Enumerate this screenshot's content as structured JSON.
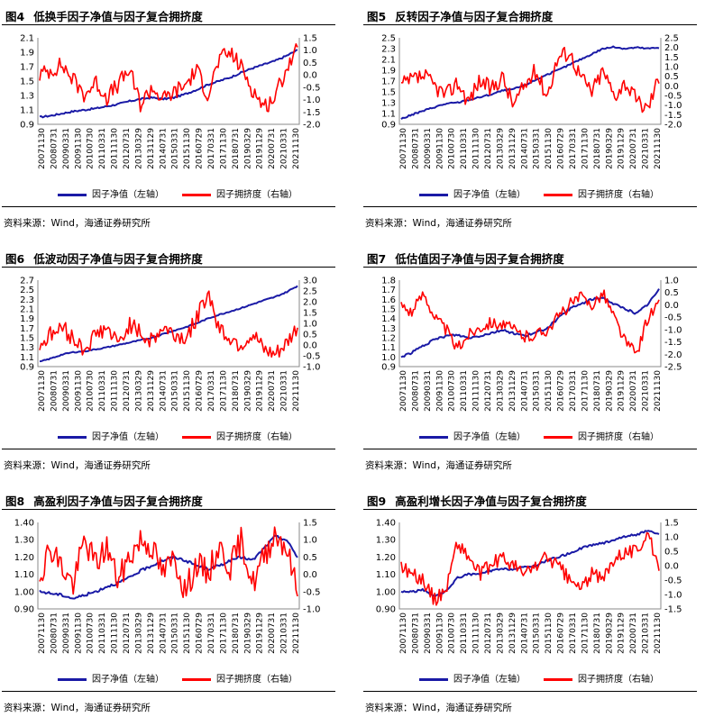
{
  "source_text": "资料来源：Wind，海通证券研究所",
  "colors": {
    "nav": "#1a1aa6",
    "crowd": "#ff0000"
  },
  "x_ticks": [
    "20071130",
    "20080731",
    "20090331",
    "20091130",
    "20100730",
    "20110331",
    "20111130",
    "20120731",
    "20130329",
    "20131129",
    "20140731",
    "20150331",
    "20151130",
    "20160729",
    "20170331",
    "20171130",
    "20180731",
    "20190329",
    "20191129",
    "20200731",
    "20210331",
    "20211130"
  ],
  "legend": {
    "nav": "因子净值（左轴）",
    "crowd": "因子拥挤度（右轴）"
  },
  "panels": [
    {
      "id": "fig4",
      "num": "图4",
      "title": "低换手因子净值与因子复合拥挤度",
      "chart_data": {
        "type": "line",
        "left_axis": {
          "ticks": [
            "0.9",
            "1.1",
            "1.3",
            "1.5",
            "1.7",
            "1.9",
            "2.1"
          ],
          "min": 0.9,
          "max": 2.1
        },
        "right_axis": {
          "ticks": [
            "-2.0",
            "-1.5",
            "-1.0",
            "-0.5",
            "0.0",
            "0.5",
            "1.0",
            "1.5"
          ],
          "min": -2.0,
          "max": 1.5
        },
        "series": [
          {
            "key": "nav",
            "axis": "left",
            "anchors": [
              1.0,
              1.02,
              1.05,
              1.08,
              1.1,
              1.12,
              1.15,
              1.18,
              1.22,
              1.25,
              1.27,
              1.25,
              1.27,
              1.32,
              1.38,
              1.45,
              1.5,
              1.55,
              1.62,
              1.68,
              1.73,
              1.78,
              1.85,
              1.93
            ],
            "noise": 0.012
          },
          {
            "key": "crowd",
            "axis": "right",
            "anchors": [
              0.0,
              0.2,
              0.4,
              -0.2,
              -0.8,
              -0.3,
              -0.9,
              -0.4,
              0.2,
              -1.2,
              -0.5,
              -1.0,
              -0.7,
              -0.4,
              0.2,
              -0.8,
              0.6,
              0.9,
              0.3,
              -0.6,
              -1.3,
              -0.9,
              0.3,
              1.0
            ],
            "noise": 0.35
          }
        ]
      }
    },
    {
      "id": "fig5",
      "num": "图5",
      "title": "反转因子净值与因子复合拥挤度",
      "chart_data": {
        "type": "line",
        "left_axis": {
          "ticks": [
            "0.9",
            "1.1",
            "1.3",
            "1.5",
            "1.7",
            "1.9",
            "2.1",
            "2.3",
            "2.5"
          ],
          "min": 0.9,
          "max": 2.5
        },
        "right_axis": {
          "ticks": [
            "-2.0",
            "-1.5",
            "-1.0",
            "-0.5",
            "0.0",
            "0.5",
            "1.0",
            "1.5",
            "2.0",
            "2.5"
          ],
          "min": -2.0,
          "max": 2.5
        },
        "series": [
          {
            "key": "nav",
            "axis": "left",
            "anchors": [
              1.0,
              1.08,
              1.15,
              1.22,
              1.28,
              1.3,
              1.35,
              1.4,
              1.45,
              1.52,
              1.55,
              1.62,
              1.72,
              1.82,
              1.9,
              2.0,
              2.1,
              2.2,
              2.3,
              2.33,
              2.3,
              2.32,
              2.3,
              2.32
            ],
            "noise": 0.015
          },
          {
            "key": "crowd",
            "axis": "right",
            "anchors": [
              0.0,
              0.3,
              0.5,
              0.0,
              -0.5,
              0.2,
              -0.8,
              0.3,
              -0.2,
              0.5,
              -1.0,
              0.0,
              0.8,
              -0.5,
              1.5,
              1.8,
              0.5,
              -0.3,
              0.8,
              -0.5,
              0.2,
              -0.8,
              -1.2,
              0.5
            ],
            "noise": 0.45
          }
        ]
      }
    },
    {
      "id": "fig6",
      "num": "图6",
      "title": "低波动因子净值与因子复合拥挤度",
      "chart_data": {
        "type": "line",
        "left_axis": {
          "ticks": [
            "0.9",
            "1.1",
            "1.3",
            "1.5",
            "1.7",
            "1.9",
            "2.1",
            "2.3",
            "2.5",
            "2.7"
          ],
          "min": 0.9,
          "max": 2.7
        },
        "right_axis": {
          "ticks": [
            "-1.0",
            "-0.5",
            "0.0",
            "0.5",
            "1.0",
            "1.5",
            "2.0",
            "2.5",
            "3.0"
          ],
          "min": -1.0,
          "max": 3.0
        },
        "series": [
          {
            "key": "nav",
            "axis": "left",
            "anchors": [
              1.0,
              1.07,
              1.15,
              1.2,
              1.22,
              1.26,
              1.3,
              1.35,
              1.4,
              1.45,
              1.5,
              1.58,
              1.65,
              1.72,
              1.8,
              1.9,
              1.98,
              2.05,
              2.12,
              2.2,
              2.28,
              2.35,
              2.45,
              2.58
            ],
            "noise": 0.012
          },
          {
            "key": "crowd",
            "axis": "right",
            "anchors": [
              0.0,
              0.5,
              0.8,
              0.3,
              -0.2,
              0.5,
              0.8,
              0.0,
              1.0,
              0.5,
              0.2,
              0.8,
              0.5,
              0.3,
              1.2,
              2.5,
              0.8,
              0.3,
              0.0,
              0.5,
              -0.3,
              -0.5,
              0.0,
              0.8
            ],
            "noise": 0.4
          }
        ]
      }
    },
    {
      "id": "fig7",
      "num": "图7",
      "title": "低估值因子净值与因子复合拥挤度",
      "chart_data": {
        "type": "line",
        "left_axis": {
          "ticks": [
            "0.9",
            "1.0",
            "1.1",
            "1.2",
            "1.3",
            "1.4",
            "1.5",
            "1.6",
            "1.7",
            "1.8"
          ],
          "min": 0.9,
          "max": 1.8
        },
        "right_axis": {
          "ticks": [
            "-2.5",
            "-2.0",
            "-1.5",
            "-1.0",
            "-0.5",
            "0.0",
            "0.5",
            "1.0"
          ],
          "min": -2.5,
          "max": 1.0
        },
        "series": [
          {
            "key": "nav",
            "axis": "left",
            "anchors": [
              1.0,
              1.05,
              1.12,
              1.18,
              1.22,
              1.23,
              1.2,
              1.22,
              1.25,
              1.28,
              1.25,
              1.22,
              1.25,
              1.3,
              1.4,
              1.5,
              1.55,
              1.6,
              1.62,
              1.55,
              1.5,
              1.45,
              1.55,
              1.7
            ],
            "noise": 0.012
          },
          {
            "key": "crowd",
            "axis": "right",
            "anchors": [
              0.0,
              -0.3,
              0.5,
              -0.5,
              -1.0,
              -1.8,
              -1.2,
              -0.9,
              -0.7,
              -0.8,
              -1.0,
              -1.3,
              -1.2,
              -1.0,
              -0.5,
              0.0,
              0.3,
              0.0,
              0.5,
              -0.5,
              -1.5,
              -2.0,
              -0.5,
              0.0
            ],
            "noise": 0.25
          }
        ]
      }
    },
    {
      "id": "fig8",
      "num": "图8",
      "title": "高盈利因子净值与因子复合拥挤度",
      "chart_data": {
        "type": "line",
        "left_axis": {
          "ticks": [
            "0.90",
            "1.00",
            "1.10",
            "1.20",
            "1.30",
            "1.40"
          ],
          "min": 0.9,
          "max": 1.4
        },
        "right_axis": {
          "ticks": [
            "-1.0",
            "-0.5",
            "0.0",
            "0.5",
            "1.0",
            "1.5"
          ],
          "min": -1.0,
          "max": 1.5
        },
        "series": [
          {
            "key": "nav",
            "axis": "left",
            "anchors": [
              1.0,
              0.99,
              0.98,
              0.96,
              0.98,
              1.0,
              1.03,
              1.05,
              1.08,
              1.12,
              1.15,
              1.18,
              1.2,
              1.18,
              1.15,
              1.13,
              1.15,
              1.18,
              1.2,
              1.18,
              1.25,
              1.32,
              1.3,
              1.2
            ],
            "noise": 0.008
          },
          {
            "key": "crowd",
            "axis": "right",
            "anchors": [
              0.0,
              0.8,
              0.2,
              -0.3,
              1.0,
              0.3,
              0.8,
              -0.2,
              0.5,
              1.0,
              0.8,
              0.0,
              0.5,
              -0.5,
              0.3,
              0.0,
              0.8,
              0.2,
              1.0,
              -0.3,
              0.5,
              1.2,
              0.8,
              -0.5
            ],
            "noise": 0.4
          }
        ]
      }
    },
    {
      "id": "fig9",
      "num": "图9",
      "title": "高盈利增长因子净值与因子复合拥挤度",
      "chart_data": {
        "type": "line",
        "left_axis": {
          "ticks": [
            "0.90",
            "1.00",
            "1.10",
            "1.20",
            "1.30",
            "1.40"
          ],
          "min": 0.9,
          "max": 1.4
        },
        "right_axis": {
          "ticks": [
            "-1.5",
            "-1.0",
            "-0.5",
            "0.0",
            "0.5",
            "1.0",
            "1.5"
          ],
          "min": -1.5,
          "max": 1.5
        },
        "series": [
          {
            "key": "nav",
            "axis": "left",
            "anchors": [
              1.0,
              1.0,
              1.01,
              0.97,
              1.0,
              1.08,
              1.1,
              1.1,
              1.12,
              1.13,
              1.13,
              1.14,
              1.15,
              1.18,
              1.2,
              1.22,
              1.25,
              1.27,
              1.28,
              1.3,
              1.32,
              1.33,
              1.35,
              1.33
            ],
            "noise": 0.006
          },
          {
            "key": "crowd",
            "axis": "right",
            "anchors": [
              0.0,
              -0.3,
              -0.5,
              -1.2,
              -0.8,
              0.8,
              0.3,
              -0.3,
              0.0,
              0.3,
              0.0,
              -0.3,
              0.0,
              0.3,
              0.0,
              -0.5,
              -0.8,
              -0.3,
              -0.5,
              0.3,
              0.5,
              0.5,
              1.2,
              -0.3
            ],
            "noise": 0.25
          }
        ]
      }
    }
  ]
}
